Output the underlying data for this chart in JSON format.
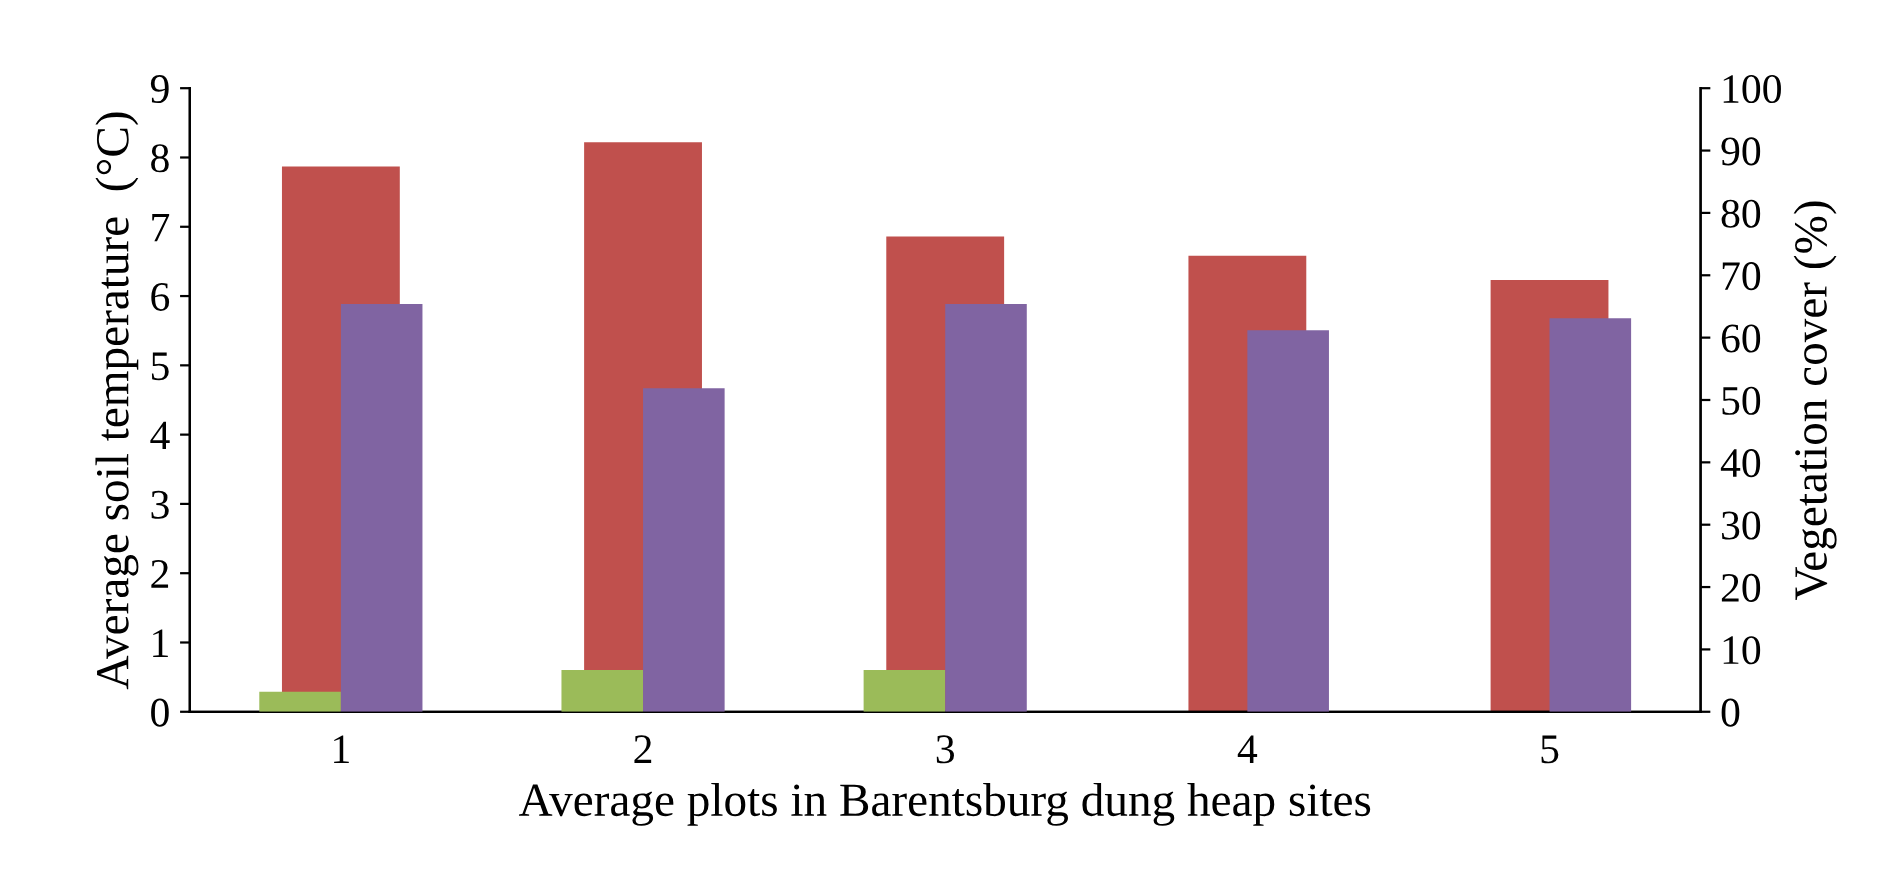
{
  "chart_data": {
    "type": "bar",
    "xlabel": "Average plots in Barentsburg dung heap sites",
    "ylabel": "Average soil temperature  (°C)",
    "y2label": "Vegetation cover (%)",
    "categories": [
      "1",
      "2",
      "3",
      "4",
      "5"
    ],
    "series": [
      {
        "color": "#c0504d",
        "values": [
          7.87,
          8.22,
          6.86,
          6.58,
          6.23
        ],
        "axis": "y"
      },
      {
        "color": "#9bbb59",
        "values": [
          3.2,
          6.7,
          6.7,
          null,
          null
        ],
        "axis": "y2"
      },
      {
        "color": "#8064a2",
        "values": [
          65.4,
          51.9,
          65.4,
          61.2,
          63.1
        ],
        "axis": "y2"
      }
    ],
    "ylim": [
      0,
      9
    ],
    "yticks": [
      0,
      1,
      2,
      3,
      4,
      5,
      6,
      7,
      8,
      9
    ],
    "y2lim": [
      0,
      100
    ],
    "y2ticks": [
      0,
      10,
      20,
      30,
      40,
      50,
      60,
      70,
      80,
      90,
      100
    ],
    "grid": false
  }
}
